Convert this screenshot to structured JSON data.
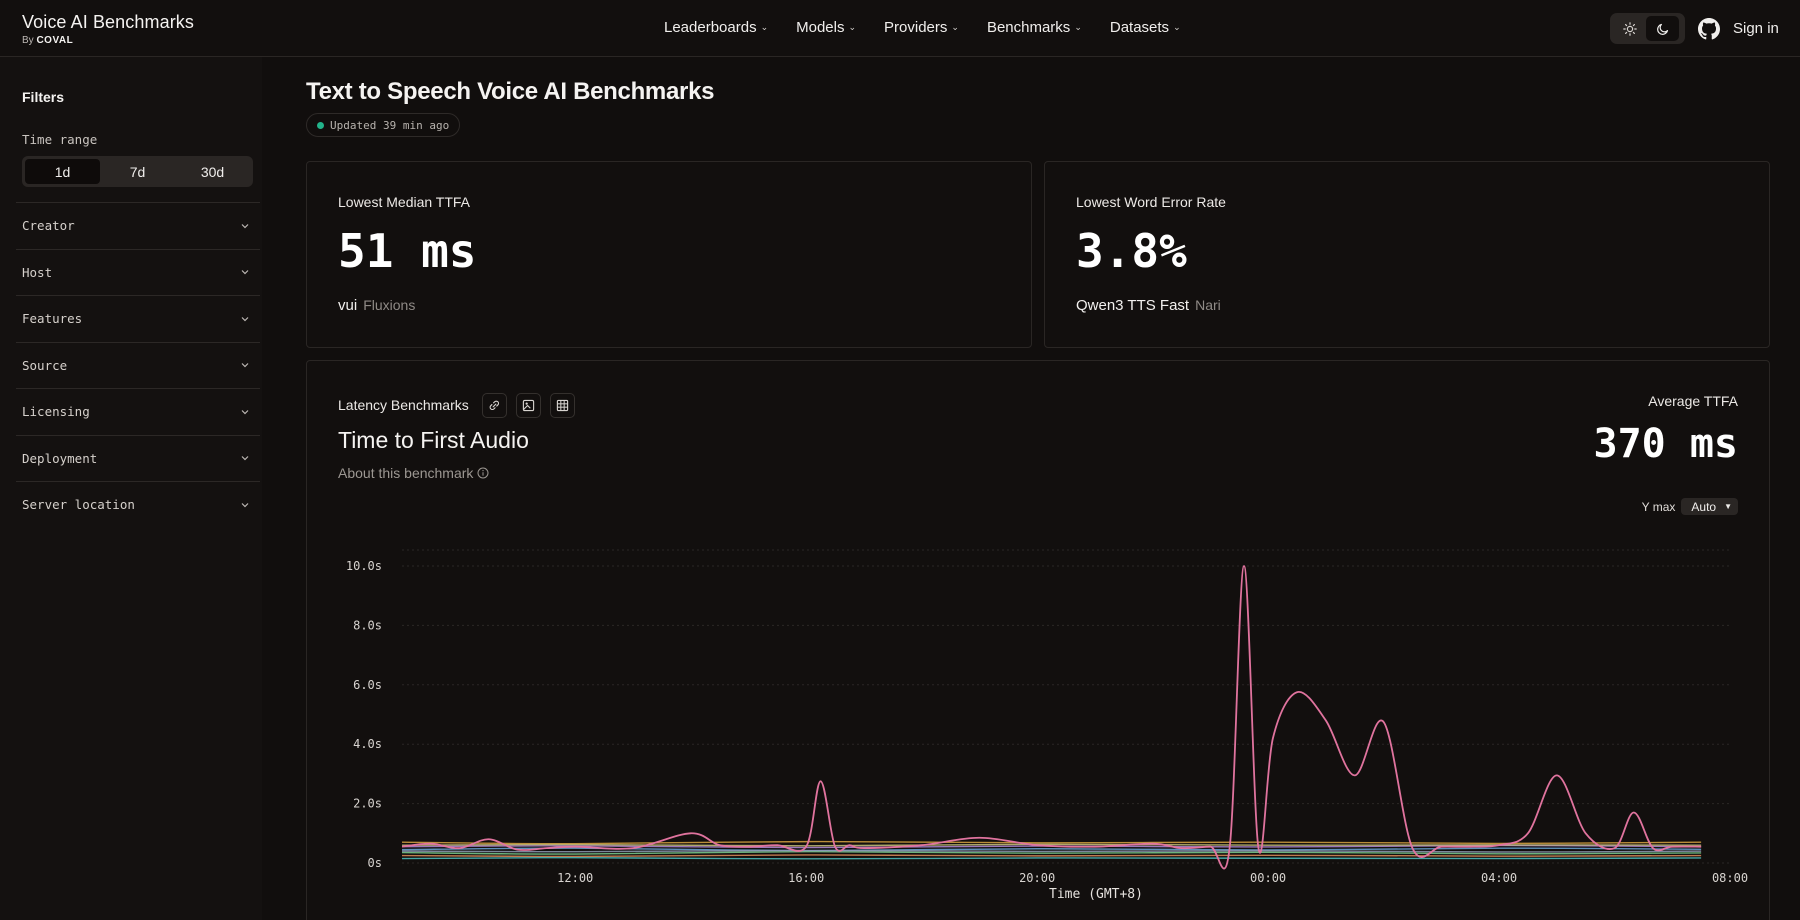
{
  "brand": {
    "title": "Voice AI Benchmarks",
    "by_prefix": "By",
    "by_name": "COVAL"
  },
  "nav": [
    {
      "label": "Leaderboards"
    },
    {
      "label": "Models"
    },
    {
      "label": "Providers"
    },
    {
      "label": "Benchmarks"
    },
    {
      "label": "Datasets"
    }
  ],
  "header": {
    "signin": "Sign in",
    "theme_selected": "dark"
  },
  "sidebar": {
    "title": "Filters",
    "time_range_label": "Time range",
    "time_options": [
      "1d",
      "7d",
      "30d"
    ],
    "time_selected": "1d",
    "filters": [
      "Creator",
      "Host",
      "Features",
      "Source",
      "Licensing",
      "Deployment",
      "Server location"
    ]
  },
  "page": {
    "title": "Text to Speech Voice AI Benchmarks",
    "updated": "Updated 39 min ago"
  },
  "cards": [
    {
      "title": "Lowest Median TTFA",
      "value": "51 ms",
      "model": "vui",
      "provider": "Fluxions"
    },
    {
      "title": "Lowest Word Error Rate",
      "value": "3.8%",
      "model": "Qwen3 TTS Fast",
      "provider": "Nari"
    }
  ],
  "benchmark": {
    "section_label": "Latency Benchmarks",
    "title": "Time to First Audio",
    "about": "About this benchmark",
    "avg_label": "Average TTFA",
    "avg_value": "370 ms",
    "ymax_label": "Y max",
    "ymax_value": "Auto"
  },
  "colors": {
    "accent_green": "#22b38a",
    "highlight_series": "#e0739e"
  },
  "chart_data": {
    "type": "line",
    "xlabel": "Time (GMT+8)",
    "ylabel": "",
    "x_ticks": [
      "12:00",
      "16:00",
      "20:00",
      "00:00",
      "04:00",
      "08:00"
    ],
    "y_ticks": [
      "0s",
      "2.0s",
      "4.0s",
      "6.0s",
      "8.0s",
      "10.0s"
    ],
    "ylim": [
      0,
      10
    ],
    "grid": true,
    "series": [
      {
        "color": "#e0739e",
        "x": [
          "09:00",
          "09:30",
          "10:00",
          "10:30",
          "11:00",
          "11:30",
          "12:00",
          "13:00",
          "14:00",
          "14:30",
          "15:00",
          "15:30",
          "16:00",
          "16:15",
          "16:30",
          "16:45",
          "17:00",
          "18:00",
          "19:00",
          "20:00",
          "21:00",
          "22:00",
          "22:30",
          "23:00",
          "23:20",
          "23:35",
          "23:50",
          "00:05",
          "00:30",
          "01:00",
          "01:30",
          "02:00",
          "02:30",
          "03:00",
          "03:30",
          "04:00",
          "04:30",
          "05:00",
          "05:30",
          "06:00",
          "06:20",
          "06:40",
          "07:00",
          "07:30"
        ],
        "values": [
          0.55,
          0.65,
          0.5,
          0.8,
          0.45,
          0.5,
          0.55,
          0.5,
          1.0,
          0.6,
          0.55,
          0.6,
          0.55,
          2.75,
          0.55,
          0.6,
          0.5,
          0.6,
          0.85,
          0.6,
          0.55,
          0.65,
          0.5,
          0.55,
          0.5,
          10.0,
          0.5,
          4.2,
          5.75,
          4.8,
          2.95,
          4.75,
          0.5,
          0.55,
          0.55,
          0.6,
          1.0,
          2.95,
          1.0,
          0.5,
          1.7,
          0.5,
          0.55,
          0.55
        ]
      },
      {
        "color": "#d9a441",
        "x": [
          "09:00",
          "12:00",
          "16:00",
          "20:00",
          "00:00",
          "04:00",
          "07:30"
        ],
        "values": [
          0.7,
          0.65,
          0.72,
          0.68,
          0.7,
          0.66,
          0.7
        ]
      },
      {
        "color": "#6aa7d8",
        "x": [
          "09:00",
          "12:00",
          "16:00",
          "20:00",
          "00:00",
          "04:00",
          "07:30"
        ],
        "values": [
          0.45,
          0.5,
          0.42,
          0.48,
          0.44,
          0.5,
          0.46
        ]
      },
      {
        "color": "#7ccf8e",
        "x": [
          "09:00",
          "12:00",
          "16:00",
          "20:00",
          "00:00",
          "04:00",
          "07:30"
        ],
        "values": [
          0.35,
          0.3,
          0.38,
          0.33,
          0.36,
          0.31,
          0.34
        ]
      },
      {
        "color": "#b48ad8",
        "x": [
          "09:00",
          "12:00",
          "16:00",
          "20:00",
          "00:00",
          "04:00",
          "07:30"
        ],
        "values": [
          0.55,
          0.58,
          0.52,
          0.57,
          0.54,
          0.59,
          0.55
        ]
      },
      {
        "color": "#e08c5a",
        "x": [
          "09:00",
          "12:00",
          "16:00",
          "20:00",
          "00:00",
          "04:00",
          "07:30"
        ],
        "values": [
          0.25,
          0.22,
          0.27,
          0.24,
          0.26,
          0.23,
          0.25
        ]
      },
      {
        "color": "#4fc1c0",
        "x": [
          "09:00",
          "12:00",
          "16:00",
          "20:00",
          "00:00",
          "04:00",
          "07:30"
        ],
        "values": [
          0.15,
          0.18,
          0.14,
          0.17,
          0.16,
          0.15,
          0.17
        ]
      },
      {
        "color": "#c9c27a",
        "x": [
          "09:00",
          "12:00",
          "16:00",
          "20:00",
          "00:00",
          "04:00",
          "07:30"
        ],
        "values": [
          0.6,
          0.62,
          0.58,
          0.63,
          0.6,
          0.61,
          0.6
        ]
      },
      {
        "color": "#8f9bb5",
        "x": [
          "09:00",
          "12:00",
          "16:00",
          "20:00",
          "00:00",
          "04:00",
          "07:30"
        ],
        "values": [
          0.4,
          0.38,
          0.42,
          0.39,
          0.41,
          0.37,
          0.4
        ]
      }
    ]
  }
}
